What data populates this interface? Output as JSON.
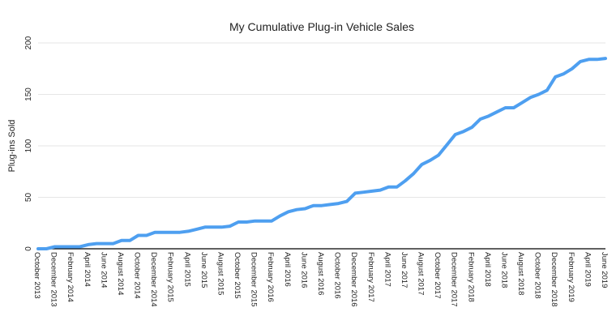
{
  "chart_data": {
    "type": "line",
    "title": "My Cumulative Plug-in Vehicle Sales",
    "xlabel": "",
    "ylabel": "Plug-ins Sold",
    "ylim": [
      0,
      200
    ],
    "y_ticks": [
      0,
      50,
      100,
      150,
      200
    ],
    "grid": true,
    "legend": "none",
    "x_tick_labels": [
      "October 2013",
      "December 2013",
      "February 2014",
      "April 2014",
      "June 2014",
      "August 2014",
      "October 2014",
      "December 2014",
      "February 2015",
      "April 2015",
      "June 2015",
      "August 2015",
      "October 2015",
      "December 2015",
      "February 2016",
      "April 2016",
      "June 2016",
      "August 2016",
      "October 2016",
      "December 2016",
      "February 2017",
      "April 2017",
      "June 2017",
      "August 2017",
      "October 2017",
      "December 2017",
      "February 2018",
      "April 2018",
      "June 2018",
      "August 2018",
      "October 2018",
      "December 2018",
      "February 2019",
      "April 2019",
      "June 2019"
    ],
    "series": [
      {
        "color": "#4e9ff0",
        "values": [
          0,
          0,
          2,
          2,
          2,
          2,
          4,
          5,
          5,
          5,
          8,
          8,
          13,
          13,
          16,
          16,
          16,
          16,
          17,
          19,
          21,
          21,
          21,
          22,
          26,
          26,
          27,
          27,
          27,
          32,
          36,
          38,
          39,
          42,
          42,
          43,
          44,
          46,
          54,
          55,
          56,
          57,
          60,
          60,
          66,
          73,
          82,
          86,
          91,
          101,
          111,
          114,
          118,
          126,
          129,
          133,
          137,
          137,
          142,
          147,
          150,
          154,
          167,
          170,
          175,
          182,
          184,
          184,
          185
        ]
      }
    ]
  }
}
